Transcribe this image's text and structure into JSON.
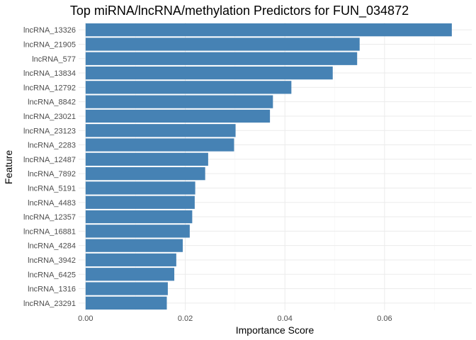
{
  "chart_data": {
    "type": "bar",
    "orientation": "horizontal",
    "title": "Top miRNA/lncRNA/methylation Predictors for FUN_034872",
    "xlabel": "Importance Score",
    "ylabel": "Feature",
    "xlim": [
      -0.0014,
      0.0775
    ],
    "x_ticks": [
      0.0,
      0.02,
      0.04,
      0.06
    ],
    "x_tick_labels": [
      "0.00",
      "0.02",
      "0.04",
      "0.06"
    ],
    "bar_color": "#4682b4",
    "grid": true,
    "categories": [
      "lncRNA_13326",
      "lncRNA_21905",
      "lncRNA_577",
      "lncRNA_13834",
      "lncRNA_12792",
      "lncRNA_8842",
      "lncRNA_23021",
      "lncRNA_23123",
      "lncRNA_2283",
      "lncRNA_12487",
      "lncRNA_7892",
      "lncRNA_5191",
      "lncRNA_4483",
      "lncRNA_12357",
      "lncRNA_16881",
      "lncRNA_4284",
      "lncRNA_3942",
      "lncRNA_6425",
      "lncRNA_1316",
      "lncRNA_23291"
    ],
    "values": [
      0.0735,
      0.055,
      0.0545,
      0.0496,
      0.0413,
      0.0376,
      0.037,
      0.0301,
      0.0298,
      0.0246,
      0.024,
      0.022,
      0.0219,
      0.0214,
      0.0209,
      0.0195,
      0.0182,
      0.0178,
      0.0165,
      0.0163
    ]
  }
}
